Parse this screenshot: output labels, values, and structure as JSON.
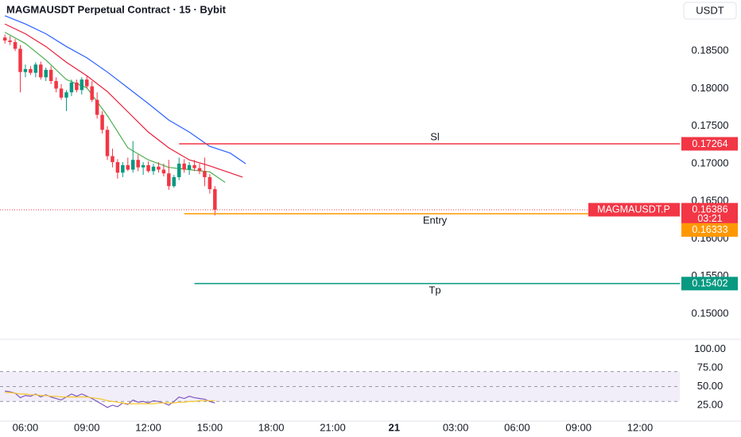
{
  "chart_data": [
    {
      "type": "candlestick",
      "title": "MAGMAUSDT Perpetual Contract · 15 · Bybit",
      "currency": "USDT",
      "up_color": "#089981",
      "down_color": "#f23645",
      "x": [
        5,
        5.25,
        5.5,
        5.75,
        6,
        6.25,
        6.5,
        6.75,
        7,
        7.25,
        7.5,
        7.75,
        8,
        8.25,
        8.5,
        8.75,
        9,
        9.25,
        9.5,
        9.75,
        10,
        10.25,
        10.5,
        10.75,
        11,
        11.25,
        11.5,
        11.75,
        12,
        12.25,
        12.5,
        12.75,
        13,
        13.25,
        13.5,
        13.75,
        14,
        14.25,
        14.5,
        14.75,
        15,
        15.25
      ],
      "open": [
        0.1868,
        0.1864,
        0.1862,
        0.1853,
        0.1822,
        0.1826,
        0.1821,
        0.1832,
        0.1815,
        0.1825,
        0.181,
        0.18,
        0.1788,
        0.1795,
        0.1808,
        0.1798,
        0.1812,
        0.1803,
        0.1785,
        0.1765,
        0.1745,
        0.171,
        0.1702,
        0.1688,
        0.1698,
        0.1692,
        0.1705,
        0.1695,
        0.1698,
        0.169,
        0.1696,
        0.1692,
        0.1687,
        0.167,
        0.1682,
        0.17,
        0.1692,
        0.1698,
        0.1694,
        0.169,
        0.1682,
        0.1666
      ],
      "high": [
        0.1872,
        0.187,
        0.1866,
        0.1858,
        0.1832,
        0.183,
        0.1835,
        0.1836,
        0.1828,
        0.183,
        0.1815,
        0.1806,
        0.1798,
        0.1812,
        0.1812,
        0.1815,
        0.1818,
        0.181,
        0.1795,
        0.177,
        0.175,
        0.172,
        0.1706,
        0.1702,
        0.1708,
        0.173,
        0.1712,
        0.1702,
        0.1703,
        0.17,
        0.1702,
        0.17,
        0.1705,
        0.1685,
        0.1708,
        0.1706,
        0.1702,
        0.1705,
        0.17,
        0.1708,
        0.1686,
        0.167
      ],
      "low": [
        0.186,
        0.1858,
        0.185,
        0.1795,
        0.1815,
        0.1818,
        0.1815,
        0.1812,
        0.181,
        0.1806,
        0.1795,
        0.1785,
        0.177,
        0.179,
        0.1795,
        0.1792,
        0.18,
        0.1782,
        0.176,
        0.174,
        0.1705,
        0.1695,
        0.168,
        0.1682,
        0.169,
        0.1688,
        0.169,
        0.1685,
        0.1688,
        0.1685,
        0.1688,
        0.1683,
        0.1665,
        0.1668,
        0.1678,
        0.1688,
        0.1685,
        0.169,
        0.1686,
        0.167,
        0.166,
        0.1631
      ],
      "close": [
        0.1864,
        0.1862,
        0.1853,
        0.1822,
        0.1826,
        0.1821,
        0.1832,
        0.1815,
        0.1825,
        0.181,
        0.18,
        0.1788,
        0.1795,
        0.1808,
        0.1798,
        0.1812,
        0.1803,
        0.1785,
        0.1765,
        0.1745,
        0.171,
        0.1702,
        0.1688,
        0.1698,
        0.1692,
        0.1705,
        0.1695,
        0.1698,
        0.169,
        0.1696,
        0.1692,
        0.1687,
        0.167,
        0.1682,
        0.17,
        0.1692,
        0.1698,
        0.1694,
        0.169,
        0.1682,
        0.1666,
        0.16386
      ],
      "lines": [
        {
          "color": "#4caf50",
          "x": [
            5,
            6,
            7,
            8,
            9,
            10,
            11,
            12,
            13,
            14,
            15,
            15.75
          ],
          "values": [
            0.1875,
            0.186,
            0.1838,
            0.1812,
            0.1801,
            0.1764,
            0.1721,
            0.1705,
            0.1695,
            0.1692,
            0.1689,
            0.1675
          ]
        },
        {
          "color": "#e91e3a",
          "x": [
            5,
            6,
            7,
            8,
            9,
            10,
            11,
            12,
            13,
            14,
            15,
            16.6
          ],
          "values": [
            0.1886,
            0.1873,
            0.1856,
            0.1835,
            0.1817,
            0.1796,
            0.1769,
            0.1742,
            0.1721,
            0.1705,
            0.1697,
            0.1682
          ]
        },
        {
          "color": "#2962ff",
          "x": [
            5,
            6,
            7,
            8,
            9,
            10,
            11,
            12,
            13,
            14,
            15,
            16,
            16.75
          ],
          "values": [
            0.1897,
            0.1886,
            0.1873,
            0.1856,
            0.1841,
            0.1822,
            0.1801,
            0.178,
            0.1758,
            0.1742,
            0.1723,
            0.1714,
            0.17
          ]
        }
      ],
      "levels": [
        {
          "label": "Sl",
          "value": 0.17264,
          "color": "#f23645",
          "start": 13.5
        },
        {
          "label": "Entry",
          "value": 0.16333,
          "color": "#ff9800",
          "start": 13.75
        },
        {
          "label": "Tp",
          "value": 0.15402,
          "color": "#089981",
          "start": 14.25
        }
      ],
      "last_price": {
        "symbol": "MAGMAUSDT.P",
        "value": 0.16386,
        "countdown": "03:21",
        "color": "#f23645"
      },
      "ylim": [
        0.1466,
        0.1918
      ],
      "yticks": [
        {
          "value": 0.15,
          "label": "0.15000"
        },
        {
          "value": 0.155,
          "label": "0.15500"
        },
        {
          "value": 0.16,
          "label": "0.16000"
        },
        {
          "value": 0.165,
          "label": "0.16500"
        },
        {
          "value": 0.17,
          "label": "0.17000"
        },
        {
          "value": 0.175,
          "label": "0.17500"
        },
        {
          "value": 0.18,
          "label": "0.18000"
        },
        {
          "value": 0.185,
          "label": "0.18500"
        }
      ],
      "xlim": [
        4.76,
        37.94
      ],
      "xticks": [
        {
          "value": 6,
          "label": "06:00"
        },
        {
          "value": 9,
          "label": "09:00"
        },
        {
          "value": 12,
          "label": "12:00"
        },
        {
          "value": 15,
          "label": "15:00"
        },
        {
          "value": 18,
          "label": "18:00"
        },
        {
          "value": 21,
          "label": "21:00"
        },
        {
          "value": 24,
          "label": "21",
          "bold": true
        },
        {
          "value": 27,
          "label": "03:00"
        },
        {
          "value": 30,
          "label": "06:00"
        },
        {
          "value": 33,
          "label": "09:00"
        },
        {
          "value": 36,
          "label": "12:00"
        }
      ]
    },
    {
      "type": "line",
      "series": [
        {
          "color": "#7e57c2",
          "values": [
            44,
            43,
            41,
            35,
            38,
            37,
            40,
            36,
            39,
            36,
            34,
            32,
            36,
            40,
            37,
            40,
            37,
            34,
            30,
            26,
            22,
            25,
            23,
            28,
            26,
            32,
            29,
            30,
            28,
            31,
            30,
            28,
            25,
            30,
            36,
            34,
            37,
            35,
            34,
            33,
            30,
            28
          ]
        },
        {
          "color": "#f7c52b",
          "values": [
            42,
            42,
            41,
            40,
            40,
            39,
            39,
            38,
            38,
            37,
            37,
            36,
            36,
            36,
            36,
            36,
            36,
            35,
            34,
            33,
            31,
            30,
            29,
            28,
            27,
            27,
            27,
            27,
            27,
            27,
            28,
            28,
            28,
            28,
            29,
            29,
            30,
            30,
            31,
            31,
            31,
            31
          ]
        }
      ],
      "levels": [
        70,
        50,
        30
      ],
      "band_color": "#7e57c2",
      "ylim": [
        3.7,
        112.2
      ],
      "yticks": [
        {
          "value": 25,
          "label": "25.00"
        },
        {
          "value": 50,
          "label": "50.00"
        },
        {
          "value": 75,
          "label": "75.00"
        },
        {
          "value": 100,
          "label": "100.00"
        }
      ]
    }
  ]
}
